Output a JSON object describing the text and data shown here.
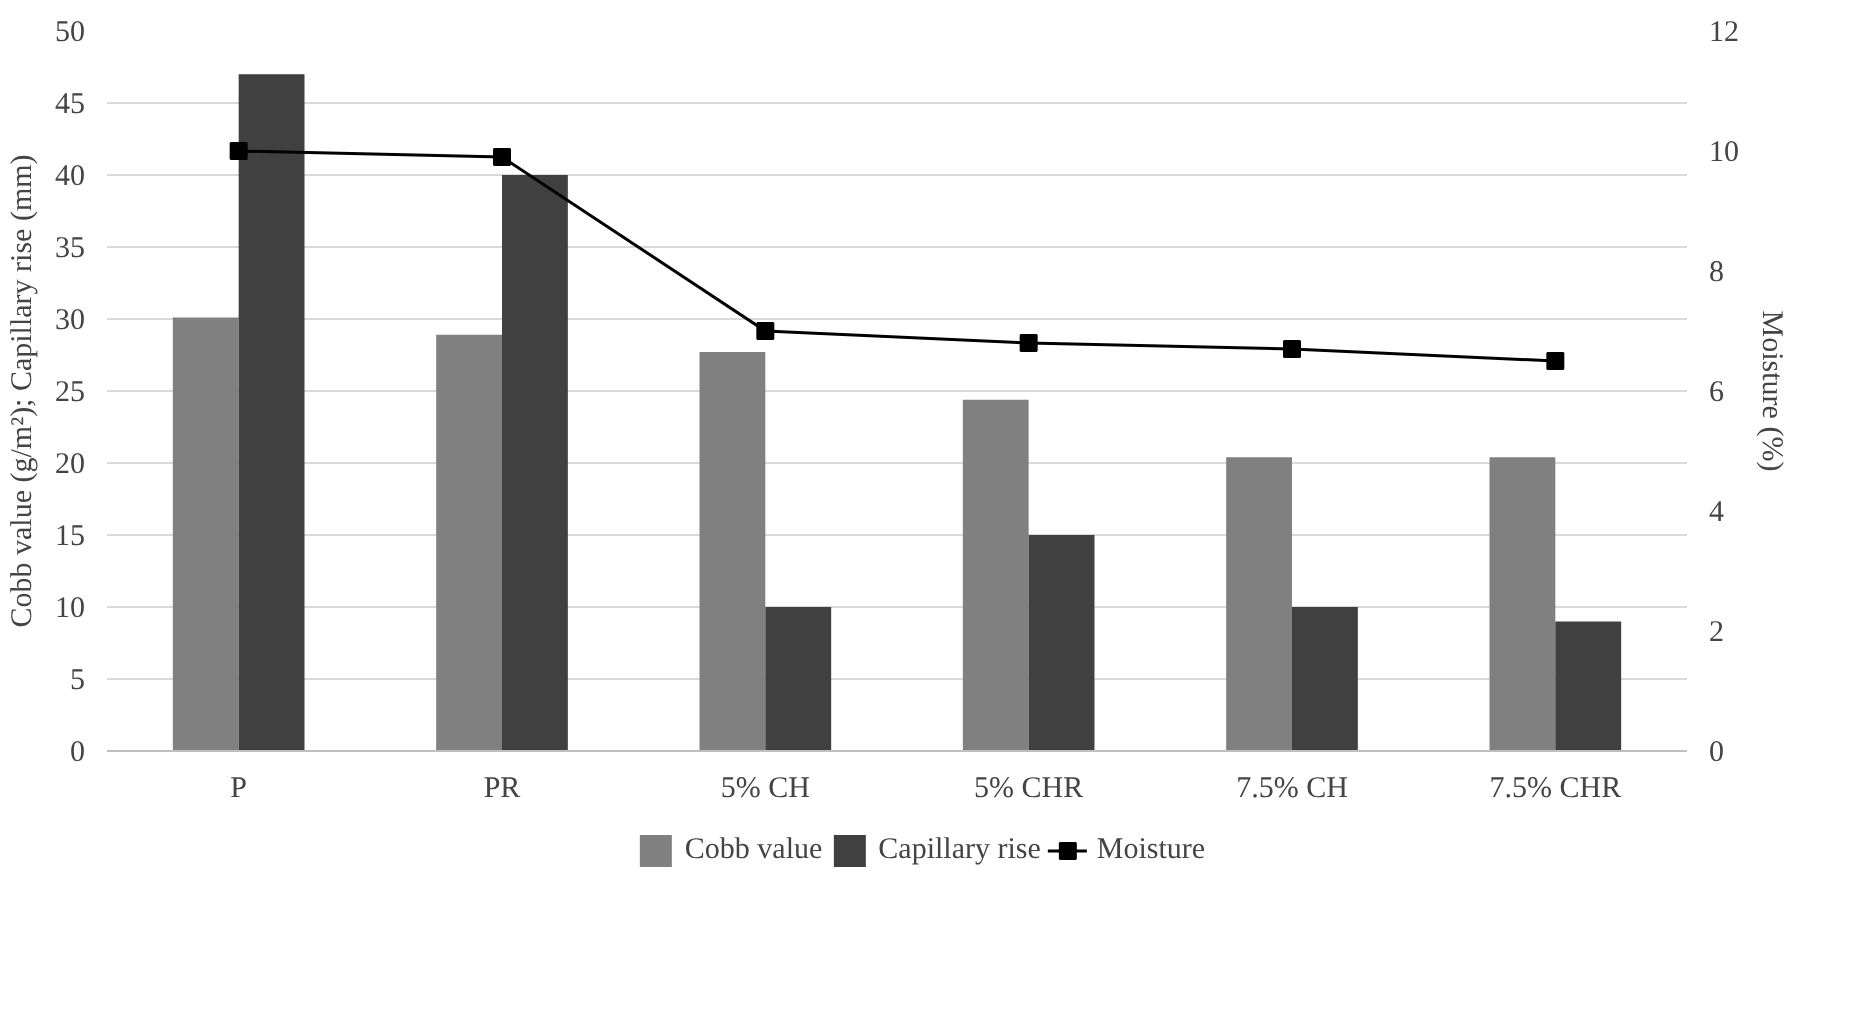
{
  "chart_data": {
    "type": "bar",
    "categories": [
      "P",
      "PR",
      "5% CH",
      "5% CHR",
      "7.5% CH",
      "7.5% CHR"
    ],
    "series": [
      {
        "name": "Cobb value",
        "color": "#808080",
        "values": [
          30.1,
          28.9,
          27.7,
          24.4,
          20.4,
          20.4
        ]
      },
      {
        "name": "Capillary rise",
        "color": "#404040",
        "values": [
          47,
          40,
          10,
          15,
          10,
          9
        ]
      },
      {
        "name": "Moisture",
        "type": "line",
        "axis": "y2",
        "color": "#000000",
        "marker": "square",
        "values": [
          10,
          9.9,
          7.0,
          6.8,
          6.7,
          6.5
        ]
      }
    ],
    "ylabel": "Cobb value (g/m²); Capillary rise (mm)",
    "y2label": "Moisture (%)",
    "ylim": [
      0,
      50
    ],
    "yticks": [
      0,
      5,
      10,
      15,
      20,
      25,
      30,
      35,
      40,
      45,
      50
    ],
    "y2lim": [
      0,
      12
    ],
    "y2ticks": [
      0,
      2,
      4,
      6,
      8,
      10,
      12
    ],
    "grid": "y",
    "legend": "bottom"
  }
}
